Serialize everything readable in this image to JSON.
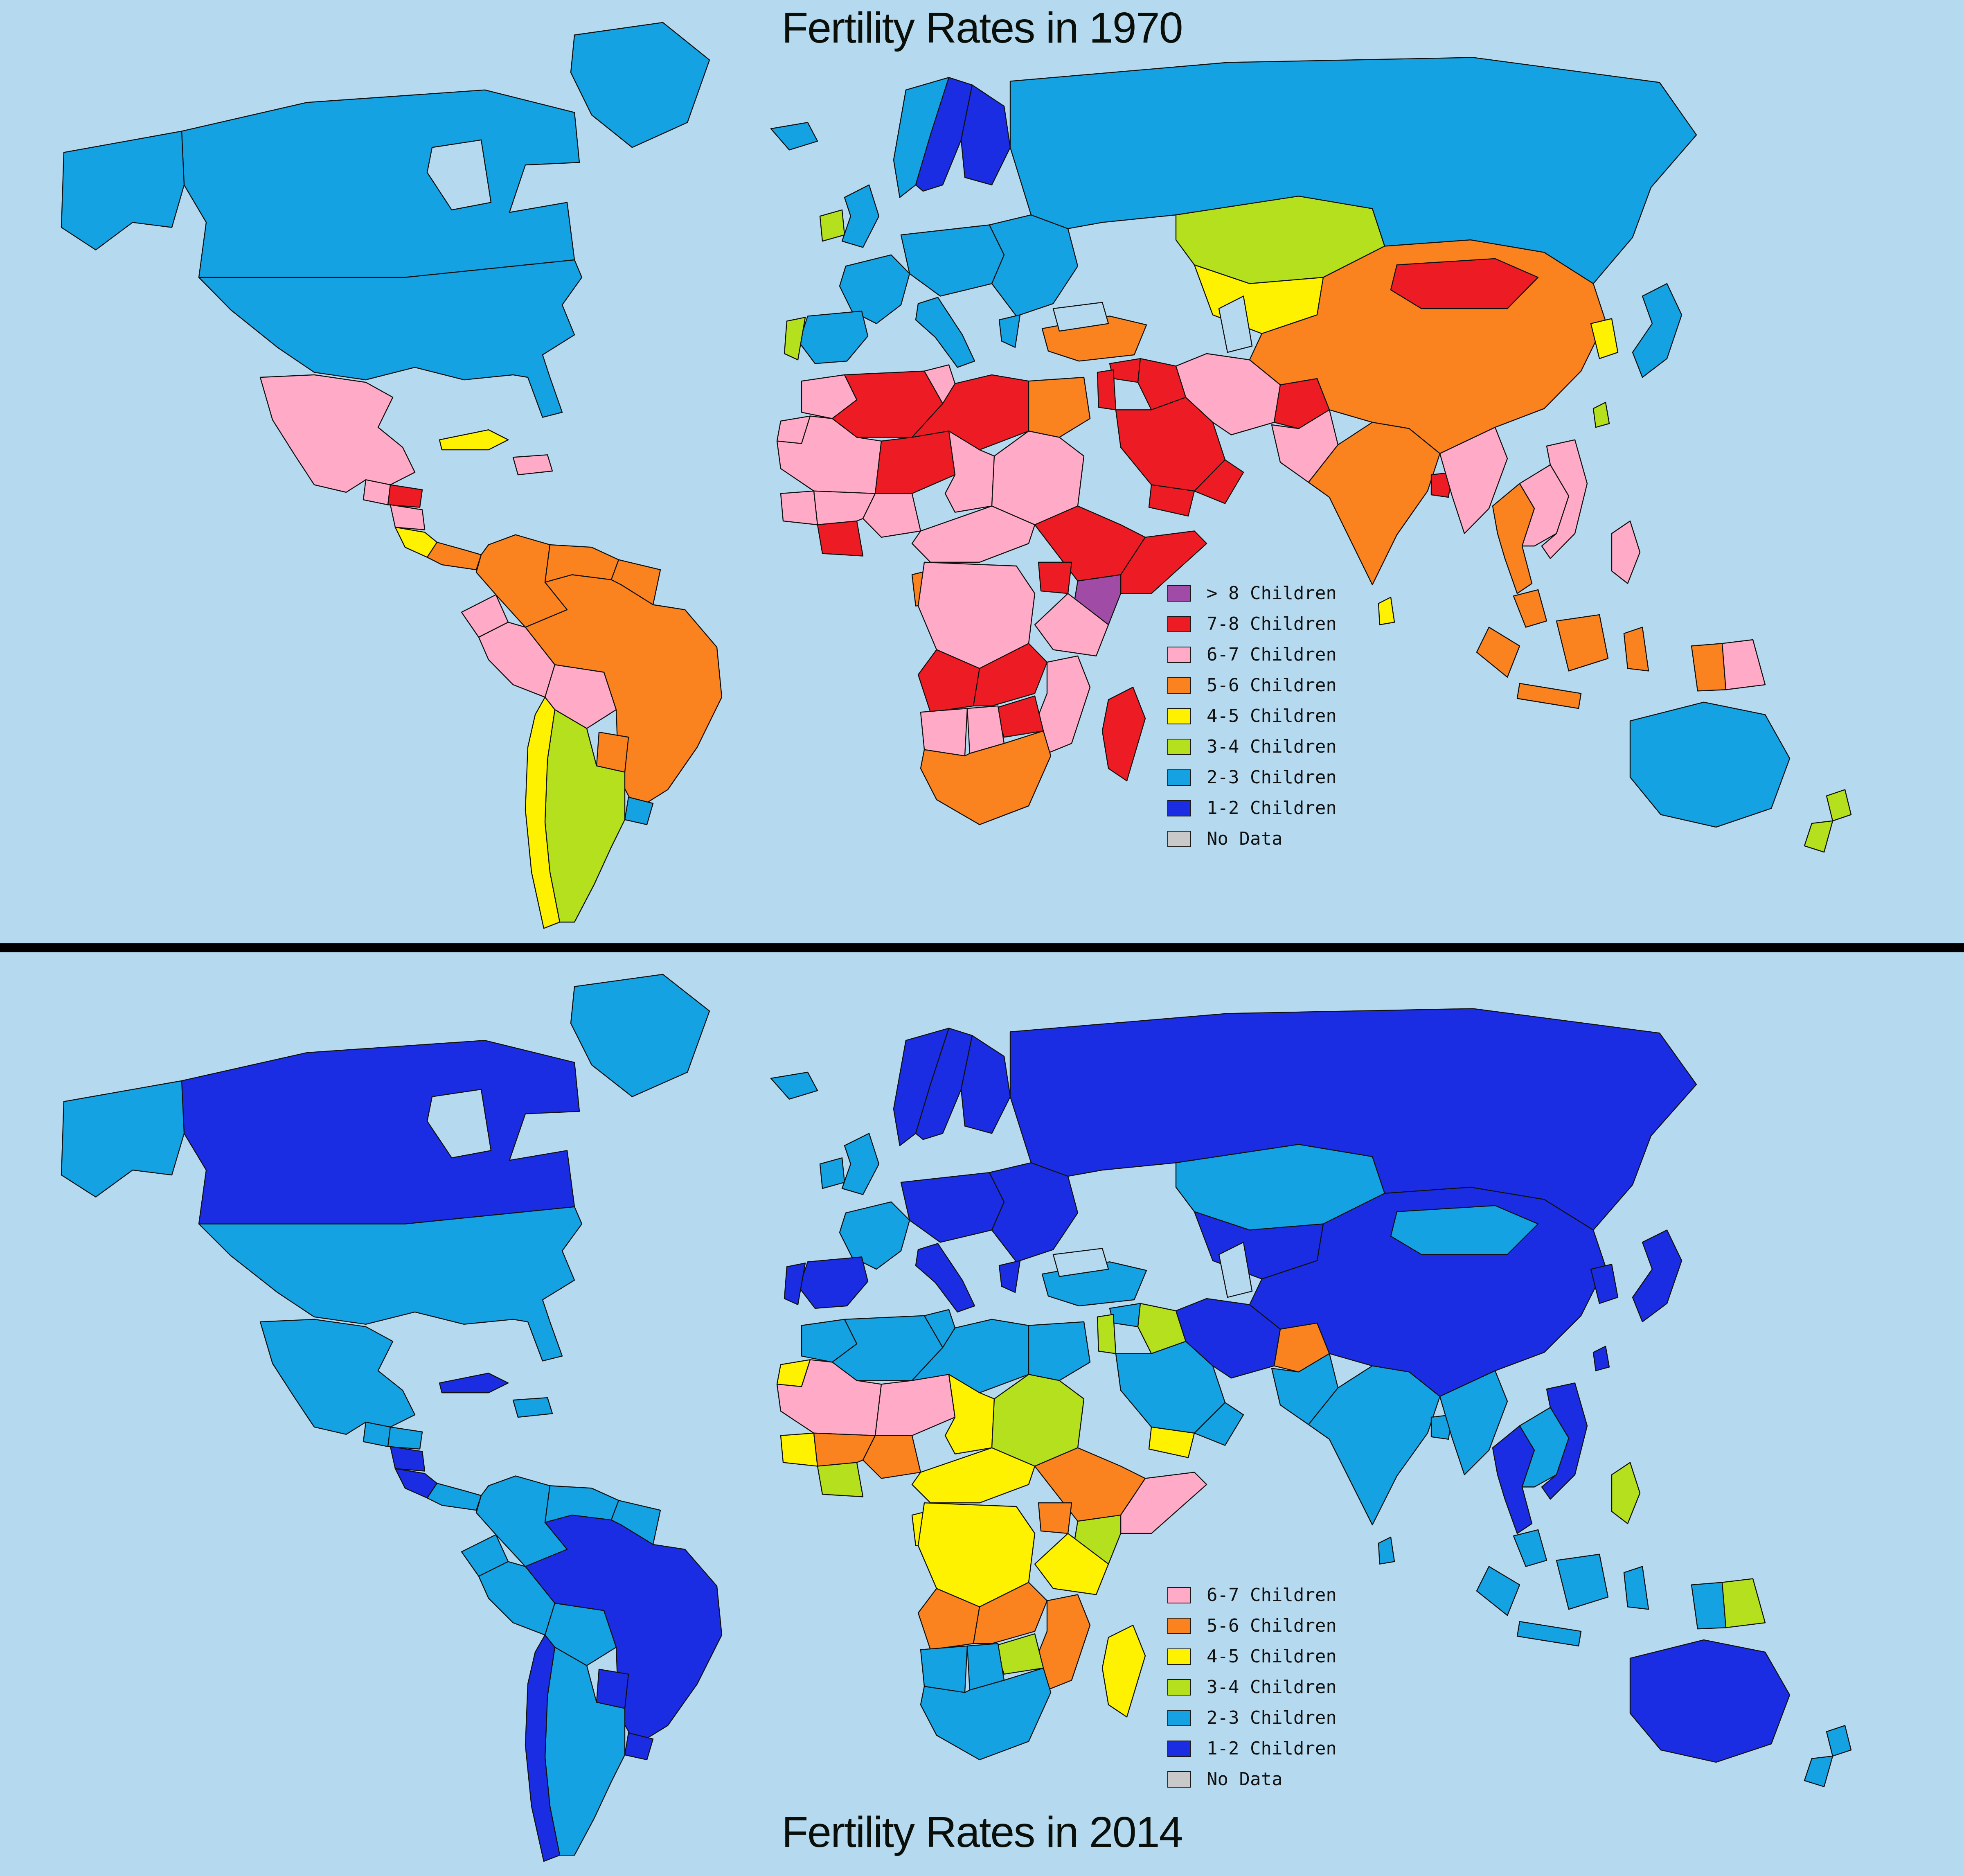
{
  "page": {
    "ocean_color": "#b5d9ee",
    "divider_color": "#000000",
    "no_data_color": "#c9c9c9",
    "border_color": "#101010"
  },
  "categories": [
    {
      "id": "gt8",
      "label": "> 8 Children",
      "color": "#a04ba5"
    },
    {
      "id": "c78",
      "label": "7-8 Children",
      "color": "#ed1c24"
    },
    {
      "id": "c67",
      "label": "6-7 Children",
      "color": "#ffabc8"
    },
    {
      "id": "c56",
      "label": "5-6 Children",
      "color": "#fb831f"
    },
    {
      "id": "c45",
      "label": "4-5 Children",
      "color": "#fef200"
    },
    {
      "id": "c34",
      "label": "3-4 Children",
      "color": "#b5e01d"
    },
    {
      "id": "c23",
      "label": "2-3 Children",
      "color": "#14a2e2"
    },
    {
      "id": "c12",
      "label": "1-2 Children",
      "color": "#1b2de2"
    },
    {
      "id": "nodata",
      "label": "No Data",
      "color": "#c9c9c9"
    }
  ],
  "maps": [
    {
      "id": "1970",
      "title": "Fertility Rates in 1970",
      "legend": [
        "gt8",
        "c78",
        "c67",
        "c56",
        "c45",
        "c34",
        "c23",
        "c12",
        "nodata"
      ],
      "regions": {
        "greenland": "c23",
        "canada": "c23",
        "usa": "c23",
        "mexico": "c67",
        "guatemala": "c67",
        "honduras": "c78",
        "nicaragua": "c67",
        "costa-rica": "c45",
        "panama": "c56",
        "cuba": "c45",
        "hispaniola": "c67",
        "colombia": "c56",
        "venezuela": "c56",
        "guyanas": "c56",
        "ecuador": "c67",
        "peru": "c67",
        "bolivia": "c67",
        "brazil": "c56",
        "paraguay": "c56",
        "uruguay": "c23",
        "argentina": "c34",
        "chile": "c45",
        "iceland": "c23",
        "uk": "c23",
        "ireland": "c34",
        "norway": "c23",
        "sweden": "c12",
        "finland": "c12",
        "central-europe": "c23",
        "france": "c23",
        "spain": "c23",
        "portugal": "c34",
        "italy": "c23",
        "east-europe": "c23",
        "greece": "c23",
        "russia": "c23",
        "turkey": "c56",
        "syria": "c78",
        "iraq": "c78",
        "levant": "c78",
        "saudi-arabia": "c78",
        "yemen": "c78",
        "oman": "c78",
        "iran": "c67",
        "afghanistan": "c78",
        "pakistan": "c67",
        "kazakhstan": "c34",
        "central-asia": "c45",
        "india": "c56",
        "bangladesh": "c78",
        "sri-lanka": "c45",
        "china": "c56",
        "mongolia": "c78",
        "korea": "c45",
        "japan": "c23",
        "taiwan": "c34",
        "myanmar": "c67",
        "thailand": "c56",
        "laos-cambodia": "c67",
        "vietnam": "c67",
        "malaysia": "c56",
        "indonesia": "c56",
        "indonesia-papua": "c56",
        "png": "c67",
        "philippines": "c67",
        "morocco": "c67",
        "western-sahara": "c67",
        "algeria": "c78",
        "tunisia": "c67",
        "libya": "c78",
        "egypt": "c56",
        "mauritania-mali": "c67",
        "niger": "c78",
        "chad": "c67",
        "sudan": "c67",
        "senegal-guinea": "c67",
        "west-africa": "c67",
        "ivory-ghana": "c78",
        "nigeria": "c67",
        "cameroon-car": "c67",
        "gabon": "c56",
        "drc": "c67",
        "ethiopia": "c78",
        "somalia": "c78",
        "kenya": "gt8",
        "uganda": "c78",
        "tanzania": "c67",
        "angola": "c78",
        "zambia": "c78",
        "mozambique": "c67",
        "zimbabwe": "c78",
        "namibia": "c67",
        "botswana": "c67",
        "south-africa": "c56",
        "madagascar": "c78",
        "australia": "c23",
        "new-zealand": "c34"
      }
    },
    {
      "id": "2014",
      "title": "Fertility Rates in 2014",
      "legend": [
        "c67",
        "c56",
        "c45",
        "c34",
        "c23",
        "c12",
        "nodata"
      ],
      "regions": {
        "greenland": "c23",
        "canada": "c12",
        "usa": "c23",
        "mexico": "c23",
        "guatemala": "c23",
        "honduras": "c23",
        "nicaragua": "c12",
        "costa-rica": "c12",
        "panama": "c23",
        "cuba": "c12",
        "hispaniola": "c23",
        "colombia": "c23",
        "venezuela": "c23",
        "guyanas": "c23",
        "ecuador": "c23",
        "peru": "c23",
        "bolivia": "c23",
        "brazil": "c12",
        "paraguay": "c12",
        "uruguay": "c12",
        "argentina": "c23",
        "chile": "c12",
        "iceland": "c23",
        "uk": "c23",
        "ireland": "c23",
        "norway": "c12",
        "sweden": "c12",
        "finland": "c12",
        "central-europe": "c12",
        "france": "c23",
        "spain": "c12",
        "portugal": "c12",
        "italy": "c12",
        "east-europe": "c12",
        "greece": "c12",
        "russia": "c12",
        "turkey": "c23",
        "syria": "c23",
        "iraq": "c34",
        "levant": "c34",
        "saudi-arabia": "c23",
        "yemen": "c45",
        "oman": "c23",
        "iran": "c12",
        "afghanistan": "c56",
        "pakistan": "c23",
        "kazakhstan": "c23",
        "central-asia": "c12",
        "india": "c23",
        "bangladesh": "c23",
        "sri-lanka": "c23",
        "china": "c12",
        "mongolia": "c23",
        "korea": "c12",
        "japan": "c12",
        "taiwan": "c12",
        "myanmar": "c23",
        "thailand": "c12",
        "laos-cambodia": "c23",
        "vietnam": "c12",
        "malaysia": "c23",
        "indonesia": "c23",
        "indonesia-papua": "c23",
        "png": "c34",
        "philippines": "c34",
        "morocco": "c23",
        "western-sahara": "c45",
        "algeria": "c23",
        "tunisia": "c23",
        "libya": "c23",
        "egypt": "c23",
        "mauritania-mali": "c67",
        "niger": "c67",
        "chad": "c45",
        "sudan": "c34",
        "senegal-guinea": "c45",
        "west-africa": "c56",
        "ivory-ghana": "c34",
        "nigeria": "c56",
        "cameroon-car": "c45",
        "gabon": "c45",
        "drc": "c45",
        "ethiopia": "c56",
        "somalia": "c67",
        "kenya": "c34",
        "uganda": "c56",
        "tanzania": "c45",
        "angola": "c56",
        "zambia": "c56",
        "mozambique": "c56",
        "zimbabwe": "c34",
        "namibia": "c23",
        "botswana": "c23",
        "south-africa": "c23",
        "madagascar": "c45",
        "australia": "c12",
        "new-zealand": "c23"
      }
    }
  ]
}
